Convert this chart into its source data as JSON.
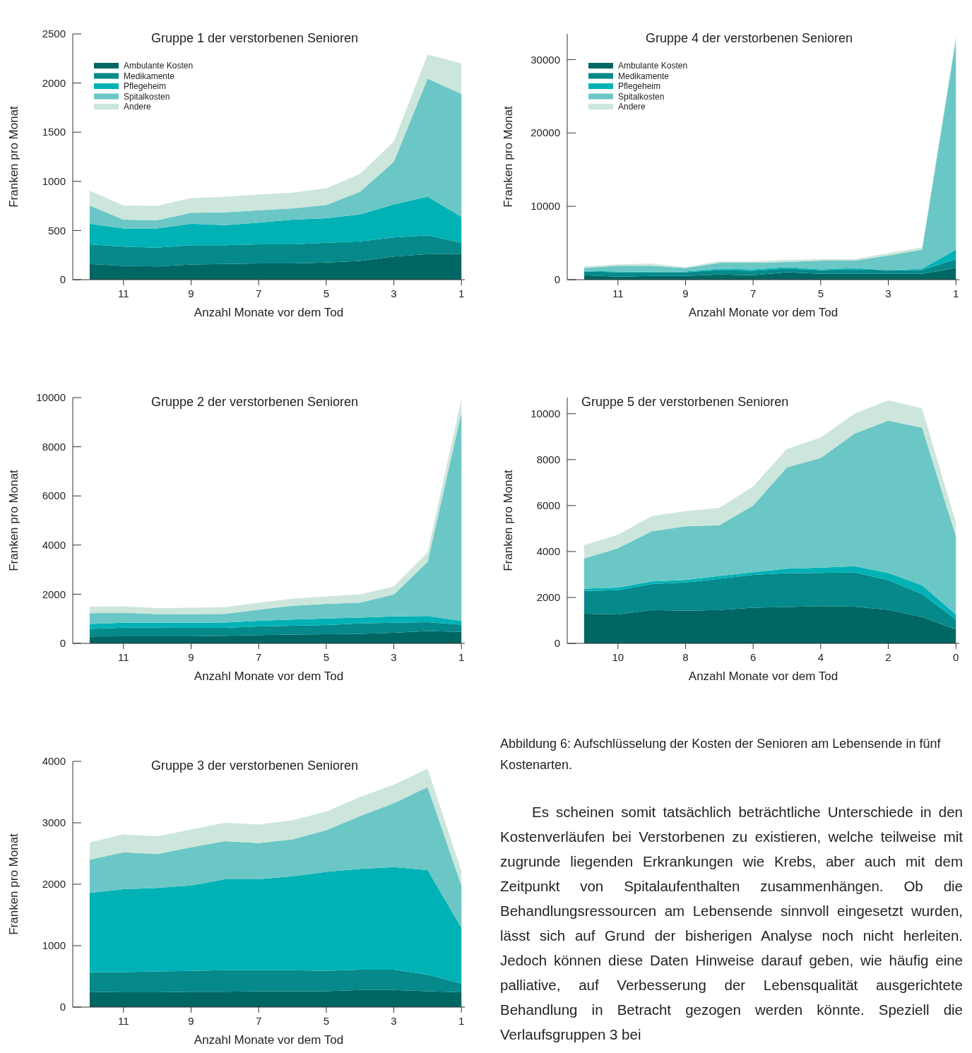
{
  "chart_data": [
    {
      "type": "area",
      "title": "Gruppe 1 der verstorbenen Senioren",
      "xlabel": "Anzahl Monate vor dem Tod",
      "ylabel": "Franken pro Monat",
      "stacked": true,
      "legend": "top left",
      "x": [
        12,
        11,
        10,
        9,
        8,
        7,
        6,
        5,
        4,
        3,
        2,
        1
      ],
      "xlim": [
        12.5,
        0.9
      ],
      "xticks": [
        11,
        9,
        7,
        5,
        3,
        1
      ],
      "ylim": [
        0,
        2500
      ],
      "yticks": [
        0,
        500,
        1000,
        1500,
        2000,
        2500
      ],
      "series": [
        {
          "name": "Ambulante Kosten",
          "color": "#006663",
          "values": [
            160,
            140,
            135,
            155,
            160,
            165,
            165,
            175,
            190,
            235,
            260,
            260
          ]
        },
        {
          "name": "Medikamente",
          "color": "#05898a",
          "values": [
            200,
            195,
            190,
            195,
            190,
            195,
            195,
            200,
            200,
            195,
            190,
            115
          ]
        },
        {
          "name": "Pflegeheim",
          "color": "#00b2b5",
          "values": [
            210,
            185,
            195,
            220,
            205,
            220,
            250,
            250,
            275,
            335,
            395,
            265
          ]
        },
        {
          "name": "Spitalkosten",
          "color": "#6bc7c5",
          "values": [
            185,
            90,
            85,
            110,
            130,
            125,
            115,
            135,
            230,
            435,
            1200,
            1250
          ]
        },
        {
          "name": "Andere",
          "color": "#cce6dc",
          "values": [
            150,
            145,
            145,
            150,
            160,
            160,
            160,
            170,
            180,
            205,
            245,
            310
          ]
        }
      ]
    },
    {
      "type": "area",
      "title": "Gruppe 4 der verstorbenen Senioren",
      "xlabel": "Anzahl Monate vor dem Tod",
      "ylabel": "Franken pro Monat",
      "stacked": true,
      "legend": "top left",
      "x": [
        12,
        11,
        10,
        9,
        8,
        7,
        6,
        5,
        4,
        3,
        2,
        1
      ],
      "xlim": [
        12.5,
        0.9
      ],
      "xticks": [
        11,
        9,
        7,
        5,
        3,
        1
      ],
      "ylim": [
        0,
        33500
      ],
      "yticks": [
        0,
        10000,
        20000,
        30000
      ],
      "series": [
        {
          "name": "Ambulante Kosten",
          "color": "#006663",
          "values": [
            600,
            400,
            500,
            500,
            700,
            600,
            1000,
            800,
            800,
            800,
            800,
            1600
          ]
        },
        {
          "name": "Medikamente",
          "color": "#05898a",
          "values": [
            500,
            600,
            500,
            500,
            600,
            600,
            500,
            500,
            600,
            500,
            500,
            1200
          ]
        },
        {
          "name": "Pflegeheim",
          "color": "#00b2b5",
          "values": [
            100,
            100,
            100,
            100,
            200,
            200,
            200,
            100,
            200,
            0,
            200,
            1300
          ]
        },
        {
          "name": "Spitalkosten",
          "color": "#6bc7c5",
          "values": [
            400,
            800,
            800,
            500,
            800,
            900,
            700,
            1200,
            1000,
            2000,
            2600,
            28600
          ]
        },
        {
          "name": "Andere",
          "color": "#cce6dc",
          "values": [
            200,
            200,
            300,
            100,
            200,
            200,
            300,
            200,
            200,
            300,
            300,
            500
          ]
        }
      ]
    },
    {
      "type": "area",
      "title": "Gruppe 2 der verstorbenen Senioren",
      "xlabel": "Anzahl Monate vor dem Tod",
      "ylabel": "Franken pro Monat",
      "stacked": true,
      "x": [
        12,
        11,
        10,
        9,
        8,
        7,
        6,
        5,
        4,
        3,
        2,
        1
      ],
      "xlim": [
        12.5,
        0.9
      ],
      "xticks": [
        11,
        9,
        7,
        5,
        3,
        1
      ],
      "ylim": [
        0,
        10000
      ],
      "yticks": [
        0,
        2000,
        4000,
        6000,
        8000,
        10000
      ],
      "series": [
        {
          "color": "#006663",
          "values": [
            280,
            290,
            290,
            290,
            310,
            340,
            360,
            370,
            390,
            430,
            500,
            470
          ]
        },
        {
          "color": "#05898a",
          "values": [
            310,
            350,
            350,
            340,
            320,
            350,
            360,
            380,
            420,
            410,
            360,
            290
          ]
        },
        {
          "color": "#00b2b5",
          "values": [
            200,
            200,
            200,
            210,
            220,
            230,
            250,
            260,
            240,
            260,
            250,
            150
          ]
        },
        {
          "color": "#6bc7c5",
          "values": [
            440,
            410,
            350,
            350,
            350,
            450,
            560,
            600,
            610,
            890,
            2210,
            8490
          ]
        },
        {
          "color": "#cce6dc",
          "values": [
            260,
            260,
            250,
            260,
            270,
            280,
            290,
            300,
            340,
            320,
            390,
            540
          ]
        }
      ]
    },
    {
      "type": "area",
      "title": "Gruppe 5 der verstorbenen Senioren",
      "xlabel": "Anzahl Monate vor dem Tod",
      "ylabel": "Franken pro Monat",
      "stacked": true,
      "x": [
        11,
        10,
        9,
        8,
        7,
        6,
        5,
        4,
        3,
        2,
        1,
        0
      ],
      "xlim": [
        11.5,
        -0.1
      ],
      "xticks": [
        10,
        8,
        6,
        4,
        2,
        0
      ],
      "ylim": [
        0,
        10700
      ],
      "yticks": [
        0,
        2000,
        4000,
        6000,
        8000,
        10000
      ],
      "series": [
        {
          "color": "#006663",
          "values": [
            1290,
            1260,
            1450,
            1420,
            1450,
            1550,
            1580,
            1620,
            1600,
            1460,
            1150,
            600
          ]
        },
        {
          "color": "#05898a",
          "values": [
            990,
            1050,
            1130,
            1230,
            1360,
            1430,
            1480,
            1450,
            1490,
            1290,
            1000,
            430
          ]
        },
        {
          "color": "#00b2b5",
          "values": [
            100,
            120,
            120,
            110,
            130,
            120,
            190,
            230,
            270,
            320,
            380,
            230
          ]
        },
        {
          "color": "#6bc7c5",
          "values": [
            1320,
            1710,
            2180,
            2340,
            2200,
            2900,
            4410,
            4770,
            5770,
            6630,
            6860,
            3400
          ]
        },
        {
          "color": "#cce6dc",
          "values": [
            580,
            590,
            660,
            660,
            760,
            830,
            800,
            890,
            880,
            880,
            840,
            580
          ]
        }
      ]
    },
    {
      "type": "area",
      "title": "Gruppe 3 der verstorbenen Senioren",
      "xlabel": "Anzahl Monate vor dem Tod",
      "ylabel": "Franken pro Monat",
      "stacked": true,
      "x": [
        12,
        11,
        10,
        9,
        8,
        7,
        6,
        5,
        4,
        3,
        2,
        1
      ],
      "xlim": [
        12.5,
        0.9
      ],
      "xticks": [
        11,
        9,
        7,
        5,
        3,
        1
      ],
      "ylim": [
        0,
        4000
      ],
      "yticks": [
        0,
        1000,
        2000,
        3000,
        4000
      ],
      "series": [
        {
          "color": "#006663",
          "values": [
            250,
            240,
            240,
            250,
            250,
            260,
            260,
            260,
            280,
            280,
            260,
            240
          ]
        },
        {
          "color": "#05898a",
          "values": [
            320,
            330,
            340,
            340,
            350,
            340,
            340,
            330,
            330,
            330,
            270,
            140
          ]
        },
        {
          "color": "#00b2b5",
          "values": [
            1290,
            1350,
            1360,
            1390,
            1480,
            1480,
            1530,
            1610,
            1640,
            1670,
            1700,
            910
          ]
        },
        {
          "color": "#6bc7c5",
          "values": [
            540,
            600,
            550,
            620,
            620,
            590,
            600,
            680,
            860,
            1040,
            1350,
            690
          ]
        },
        {
          "color": "#cce6dc",
          "values": [
            280,
            290,
            290,
            290,
            300,
            300,
            310,
            300,
            310,
            300,
            300,
            230
          ]
        }
      ]
    },
    {
      "type": "other",
      "annotations": [
        "Abbildung 6: Aufschlüsselung der Kosten der Senioren am Lebensende in fünf Kostenarten.",
        "Es scheinen somit tatsächlich beträchtliche Unterschiede in den Kostenverläufen bei Verstorbenen zu existieren, welche teilweise mit zugrunde liegenden Erkrankungen wie Krebs, aber auch mit dem Zeitpunkt von Spitalaufenthalten zusammenhängen. Ob die Behandlungsressourcen am Lebensende sinnvoll eingesetzt wurden, lässt sich auf Grund der bisherigen Analyse noch nicht herleiten. Jedoch können diese Daten Hinweise darauf geben, wie häufig eine palliative, auf Verbesserung der Lebensqualität ausgerichtete Behandlung in Betracht gezogen werden könnte. Speziell die Verlaufsgruppen 3 bei"
      ]
    }
  ]
}
